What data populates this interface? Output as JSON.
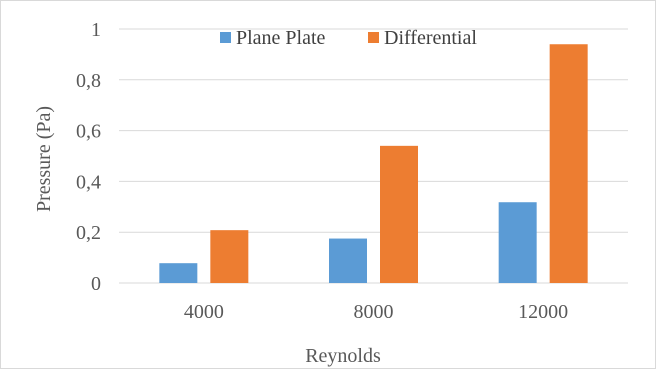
{
  "chart_data": {
    "type": "bar",
    "title": "",
    "xlabel": "Reynolds",
    "ylabel": "Pressure (Pa)",
    "categories": [
      "4000",
      "8000",
      "12000"
    ],
    "series": [
      {
        "name": "Plane Plate",
        "values": [
          0.078,
          0.175,
          0.318
        ],
        "color": "#5b9bd5"
      },
      {
        "name": "Differential",
        "values": [
          0.208,
          0.54,
          0.94
        ],
        "color": "#ed7d31"
      }
    ],
    "ylim": [
      0,
      1
    ],
    "yticks": [
      "0",
      "0,2",
      "0,4",
      "0,6",
      "0,8",
      "1"
    ],
    "ytick_values": [
      0,
      0.2,
      0.4,
      0.6,
      0.8,
      1
    ],
    "grid": true,
    "legend_position": "top"
  }
}
